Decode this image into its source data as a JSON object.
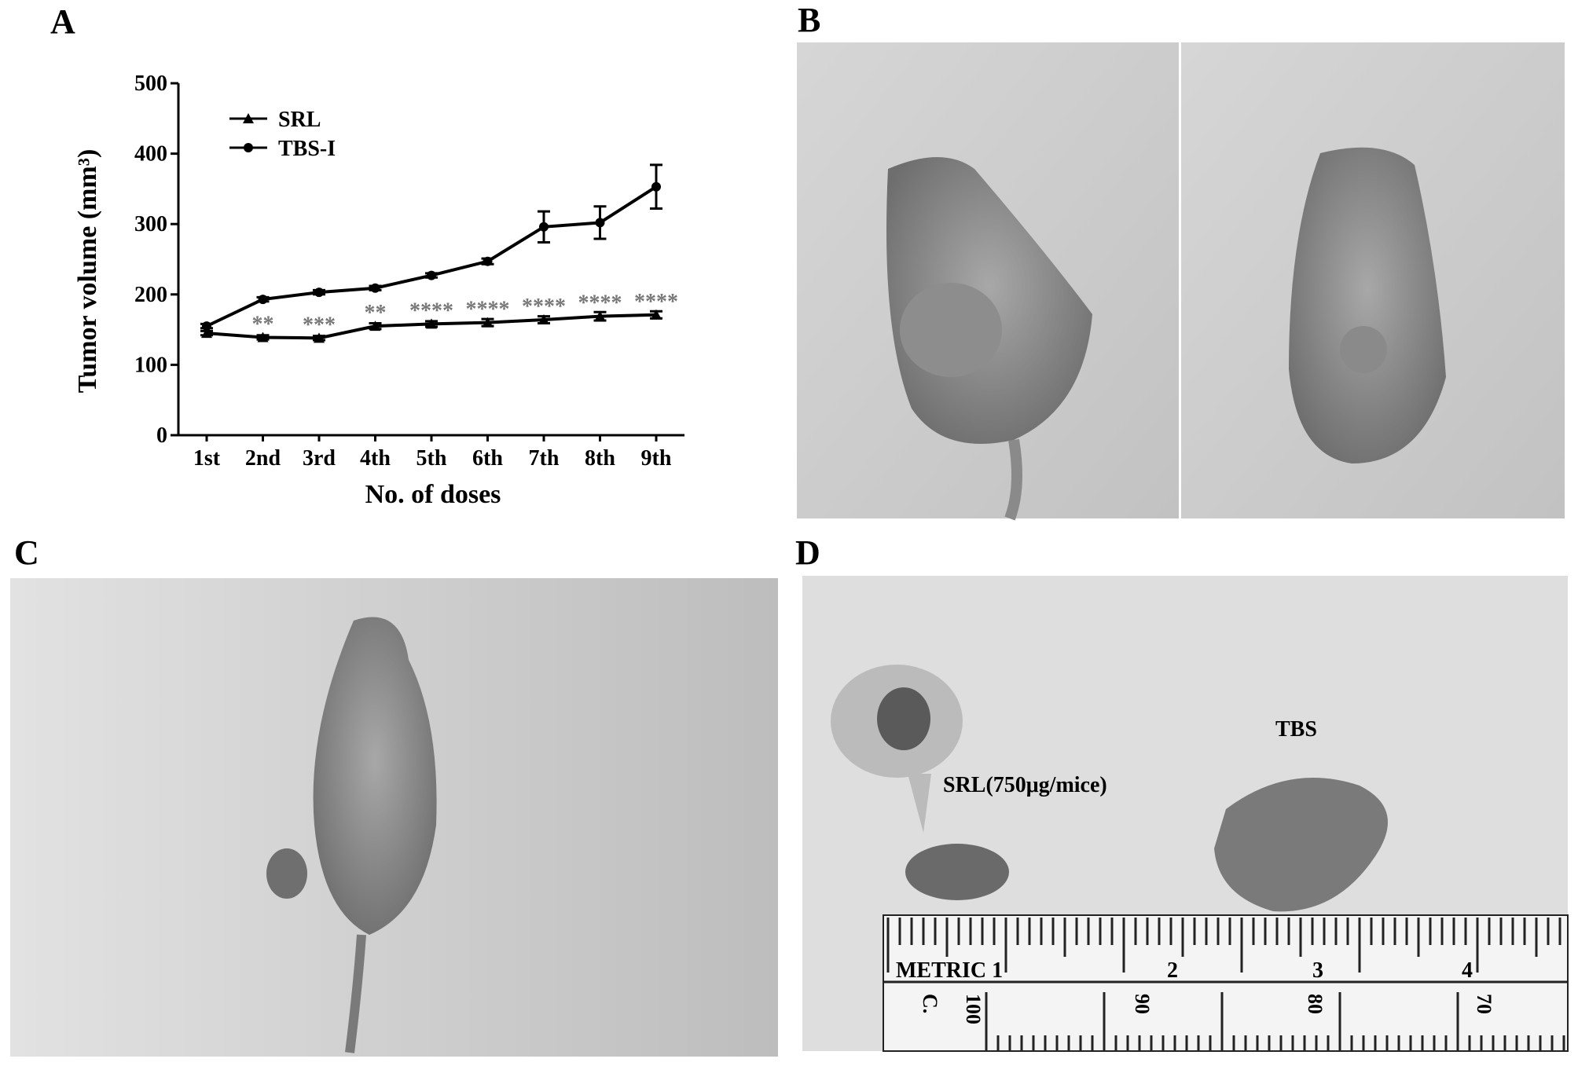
{
  "panel_labels": [
    "A",
    "B",
    "C",
    "D"
  ],
  "chart_data": {
    "type": "line",
    "x_label": "No. of doses",
    "y_label": "Tumor volume (mm³)",
    "categories": [
      "1st",
      "2nd",
      "3rd",
      "4th",
      "5th",
      "6th",
      "7th",
      "8th",
      "9th"
    ],
    "series": [
      {
        "name": "SRL",
        "color": "#000000",
        "marker": "triangle",
        "values": [
          145,
          139,
          138,
          155,
          158,
          160,
          164,
          169,
          171
        ],
        "errors": [
          3,
          3,
          3,
          4,
          4,
          5,
          5,
          6,
          5
        ]
      },
      {
        "name": "TBS-I",
        "color": "#000000",
        "marker": "circle",
        "values": [
          155,
          193,
          203,
          209,
          227,
          247,
          296,
          302,
          353
        ],
        "errors": [
          3,
          3,
          3,
          3,
          3,
          4,
          22,
          23,
          31
        ]
      }
    ],
    "significance": [
      null,
      "**",
      "***",
      "**",
      "****",
      "****",
      "****",
      "****",
      "****"
    ],
    "ylim": [
      0,
      500
    ],
    "yticks": [
      0,
      100,
      200,
      300,
      400,
      500
    ],
    "legend": "upper left"
  },
  "photo_annotations": {
    "srl": "SRL(750μg/mice)",
    "tbs": "TBS"
  },
  "ruler": {
    "top_labels": [
      "METRIC 1",
      "2",
      "3",
      "4"
    ],
    "bottom_labels": [
      "C.",
      "100",
      "90",
      "80",
      "70"
    ]
  }
}
